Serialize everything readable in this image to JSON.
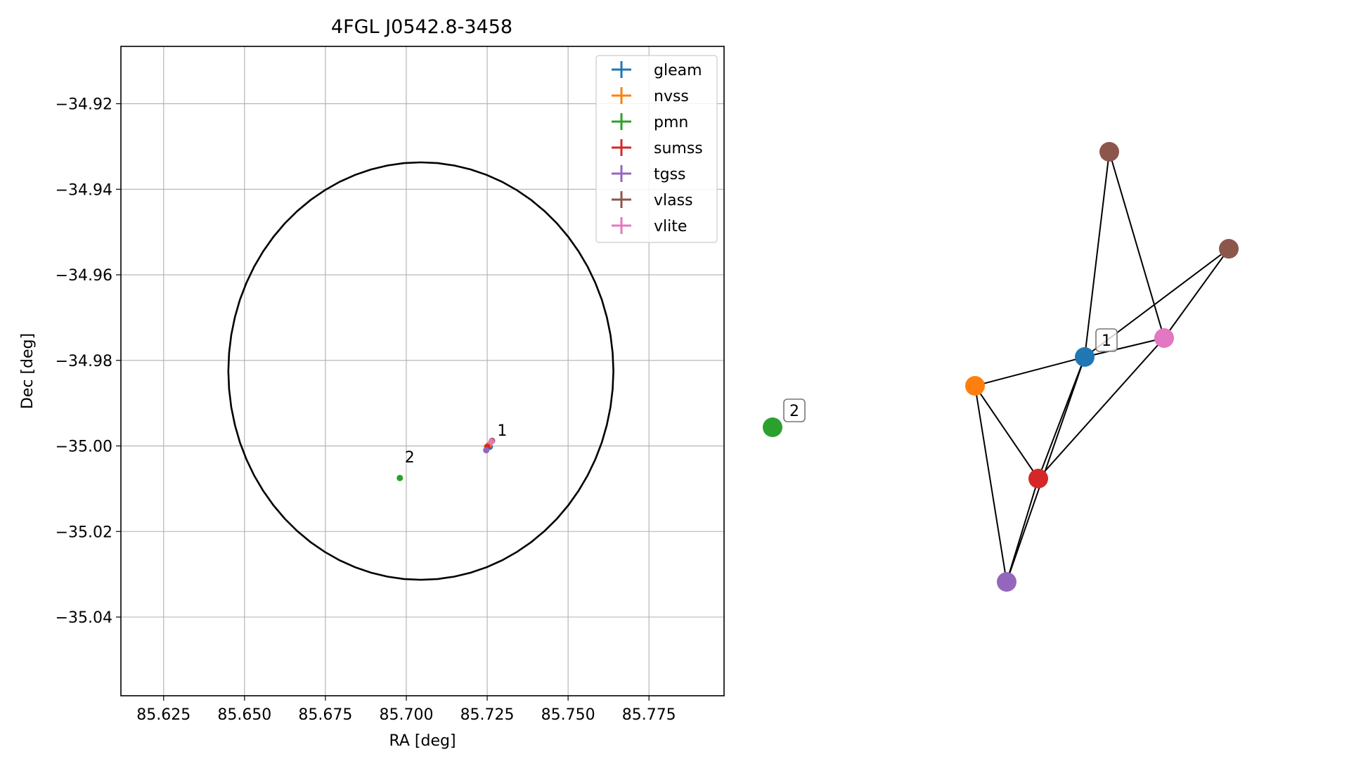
{
  "chart_data": [
    {
      "type": "scatter",
      "title": "4FGL J0542.8-3458",
      "xlabel": "RA [deg]",
      "ylabel": "Dec [deg]",
      "xlim": [
        85.6118,
        85.7982
      ],
      "ylim": [
        -35.0584,
        -34.9066
      ],
      "xticks": [
        85.625,
        85.65,
        85.675,
        85.7,
        85.725,
        85.75,
        85.775
      ],
      "xtick_labels": [
        "85.625",
        "85.650",
        "85.675",
        "85.700",
        "85.725",
        "85.750",
        "85.775"
      ],
      "yticks": [
        -34.92,
        -34.94,
        -34.96,
        -34.98,
        -35.0,
        -35.02,
        -35.04
      ],
      "ytick_labels": [
        "−34.92",
        "−34.94",
        "−34.96",
        "−34.98",
        "−35.00",
        "−35.02",
        "−35.04"
      ],
      "grid": true,
      "legend_position": "top-right",
      "error_circle": {
        "center": [
          85.7045,
          -34.9825
        ],
        "radius_ra": 0.0595,
        "radius_dec": 0.0488
      },
      "series": [
        {
          "name": "gleam",
          "color": "#1f77b4",
          "points": [
            [
              85.7258,
              -35.0002
            ]
          ]
        },
        {
          "name": "nvss",
          "color": "#ff7f0e",
          "points": [
            [
              85.7255,
              -34.9998
            ]
          ]
        },
        {
          "name": "pmn",
          "color": "#2ca02c",
          "points": [
            [
              85.698,
              -35.0075
            ]
          ]
        },
        {
          "name": "sumss",
          "color": "#d62728",
          "points": [
            [
              85.725,
              -35.0002
            ]
          ]
        },
        {
          "name": "tgss",
          "color": "#9467bd",
          "points": [
            [
              85.7247,
              -35.001
            ]
          ]
        },
        {
          "name": "vlass",
          "color": "#8c564b",
          "points": [
            [
              85.7265,
              -34.9988
            ]
          ]
        },
        {
          "name": "vlite",
          "color": "#e377c2",
          "points": [
            [
              85.7263,
              -34.999
            ]
          ]
        }
      ],
      "annotations": [
        {
          "text": "1",
          "x": 85.7268,
          "y": -34.9983
        },
        {
          "text": "2",
          "x": 85.6982,
          "y": -35.0045
        }
      ]
    },
    {
      "type": "network",
      "nodes": [
        {
          "id": "gleam",
          "color": "#1f77b4",
          "label": "1"
        },
        {
          "id": "nvss",
          "color": "#ff7f0e"
        },
        {
          "id": "pmn",
          "color": "#2ca02c",
          "label": "2"
        },
        {
          "id": "sumss",
          "color": "#d62728"
        },
        {
          "id": "tgss",
          "color": "#9467bd"
        },
        {
          "id": "vlass_a",
          "color": "#8c564b"
        },
        {
          "id": "vlass_b",
          "color": "#8c564b"
        },
        {
          "id": "vlite",
          "color": "#e377c2"
        }
      ],
      "edges": [
        [
          "gleam",
          "vlass_a"
        ],
        [
          "gleam",
          "vlass_b"
        ],
        [
          "gleam",
          "vlite"
        ],
        [
          "gleam",
          "nvss"
        ],
        [
          "gleam",
          "sumss"
        ],
        [
          "gleam",
          "tgss"
        ],
        [
          "nvss",
          "sumss"
        ],
        [
          "nvss",
          "tgss"
        ],
        [
          "sumss",
          "vlite"
        ],
        [
          "sumss",
          "tgss"
        ],
        [
          "vlass_a",
          "vlite"
        ],
        [
          "vlass_b",
          "vlite"
        ]
      ]
    }
  ]
}
